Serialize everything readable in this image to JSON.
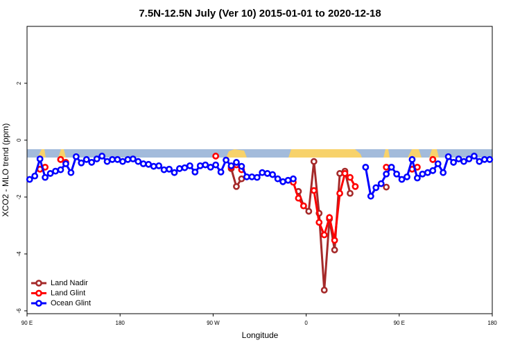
{
  "chart_data": {
    "type": "line",
    "title": "7.5N-12.5N July (Ver 10)   2015-01-01 to 2020-12-18",
    "x_label": "Longitude",
    "y_label": "XCO2 - MLO trend (ppm)",
    "xlim": [
      90,
      540
    ],
    "ylim": [
      -6.1,
      4
    ],
    "xticks": [
      {
        "value": 90,
        "label": "90 E"
      },
      {
        "value": 180,
        "label": "180"
      },
      {
        "value": 270,
        "label": "90 W"
      },
      {
        "value": 360,
        "label": "0"
      },
      {
        "value": 450,
        "label": "90 E"
      },
      {
        "value": 540,
        "label": "180"
      }
    ],
    "yticks": [
      -6,
      -4,
      -2,
      0,
      2
    ],
    "legend": "bottom-left",
    "x": [
      92.5,
      97.5,
      102.5,
      107.5,
      112.5,
      117.5,
      122.5,
      127.5,
      132.5,
      137.5,
      142.5,
      147.5,
      152.5,
      157.5,
      162.5,
      167.5,
      172.5,
      177.5,
      182.5,
      187.5,
      192.5,
      197.5,
      202.5,
      207.5,
      212.5,
      217.5,
      222.5,
      227.5,
      232.5,
      237.5,
      242.5,
      247.5,
      252.5,
      257.5,
      262.5,
      267.5,
      272.5,
      277.5,
      282.5,
      287.5,
      292.5,
      297.5,
      302.5,
      307.5,
      312.5,
      317.5,
      322.5,
      327.5,
      332.5,
      337.5,
      342.5,
      347.5,
      352.5,
      357.5,
      362.5,
      367.5,
      372.5,
      377.5,
      382.5,
      387.5,
      392.5,
      397.5,
      402.5,
      407.5,
      412.5,
      417.5,
      422.5,
      427.5,
      432.5,
      437.5,
      442.5,
      447.5,
      452.5,
      457.5,
      462.5,
      467.5,
      472.5,
      477.5,
      482.5,
      487.5,
      492.5,
      497.5,
      502.5,
      507.5,
      512.5,
      517.5,
      522.5,
      527.5,
      532.5,
      537.5
    ],
    "series": [
      {
        "name": "Land Nadir",
        "color": "#a52a2a",
        "values": [
          null,
          null,
          -1.02,
          null,
          null,
          null,
          -0.68,
          null,
          null,
          null,
          null,
          null,
          null,
          null,
          null,
          null,
          null,
          null,
          null,
          null,
          null,
          null,
          null,
          null,
          null,
          null,
          null,
          null,
          null,
          null,
          null,
          null,
          null,
          null,
          null,
          null,
          null,
          null,
          null,
          -1.0,
          -1.63,
          -1.36,
          null,
          null,
          null,
          null,
          null,
          null,
          null,
          null,
          null,
          null,
          -1.8,
          -2.31,
          -2.5,
          -0.75,
          -2.57,
          -5.27,
          -2.77,
          -3.86,
          -1.17,
          -1.09,
          -1.87,
          null,
          null,
          null,
          null,
          null,
          null,
          -1.65,
          null,
          null,
          null,
          null,
          null,
          null,
          null,
          null,
          -0.68,
          null,
          null,
          null,
          null,
          null,
          null,
          null,
          null,
          null,
          null,
          null
        ]
      },
      {
        "name": "Land Glint",
        "color": "#ff0000",
        "values": [
          null,
          null,
          -1.02,
          -0.95,
          null,
          null,
          -0.68,
          -0.78,
          null,
          null,
          null,
          null,
          null,
          null,
          null,
          null,
          null,
          null,
          null,
          null,
          null,
          null,
          null,
          null,
          null,
          null,
          null,
          null,
          null,
          null,
          null,
          null,
          null,
          null,
          null,
          null,
          -0.56,
          null,
          null,
          -0.95,
          -0.87,
          -1.04,
          null,
          null,
          null,
          null,
          null,
          null,
          null,
          null,
          null,
          -1.48,
          -2.04,
          -2.31,
          null,
          -1.77,
          -2.89,
          -3.33,
          -2.72,
          -3.52,
          -1.87,
          -1.17,
          -1.31,
          -1.63,
          null,
          null,
          null,
          null,
          null,
          -0.95,
          null,
          null,
          null,
          null,
          -1.02,
          -0.95,
          null,
          null,
          -0.68,
          null,
          null,
          null,
          null,
          null,
          null,
          null,
          null,
          null,
          null,
          null
        ]
      },
      {
        "name": "Ocean Glint",
        "color": "#0000ff",
        "values": [
          -1.38,
          -1.26,
          -0.66,
          -1.31,
          -1.17,
          -1.09,
          -1.04,
          -0.83,
          -1.14,
          -0.58,
          -0.8,
          -0.68,
          -0.78,
          -0.66,
          -0.56,
          -0.75,
          -0.68,
          -0.68,
          -0.75,
          -0.68,
          -0.66,
          -0.75,
          -0.83,
          -0.85,
          -0.92,
          -0.9,
          -1.04,
          -1.02,
          -1.14,
          -1.0,
          -0.97,
          -0.9,
          -1.12,
          -0.9,
          -0.87,
          -0.95,
          -0.87,
          -1.12,
          -0.7,
          -0.9,
          -0.78,
          -0.92,
          -1.29,
          -1.29,
          -1.31,
          -1.14,
          -1.17,
          -1.21,
          -1.36,
          -1.46,
          -1.41,
          -1.36,
          null,
          null,
          null,
          null,
          null,
          null,
          null,
          null,
          null,
          null,
          null,
          null,
          null,
          -0.95,
          -1.97,
          -1.67,
          -1.53,
          -1.19,
          -0.95,
          -1.19,
          -1.38,
          -1.29,
          -0.68,
          -1.33,
          -1.19,
          -1.14,
          -1.07,
          -0.83,
          -1.14,
          -0.58,
          -0.78,
          -0.66,
          -0.75,
          -0.66,
          -0.56,
          -0.75,
          -0.68,
          -0.68
        ]
      }
    ]
  }
}
